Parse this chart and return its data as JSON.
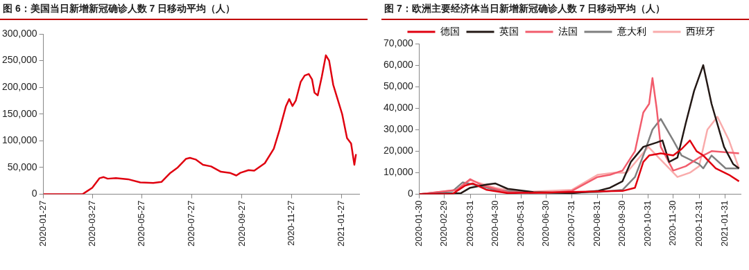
{
  "chart_data": [
    {
      "type": "line",
      "title": "图 6：美国当日新增新冠确诊人数 7 日移动平均（人）",
      "color": "#e0000f",
      "x": [
        "2020-01-27",
        "2020-03-15",
        "2020-03-20",
        "2020-03-27",
        "2020-04-05",
        "2020-04-10",
        "2020-04-15",
        "2020-04-25",
        "2020-05-10",
        "2020-05-25",
        "2020-06-10",
        "2020-06-20",
        "2020-07-01",
        "2020-07-10",
        "2020-07-20",
        "2020-07-25",
        "2020-08-01",
        "2020-08-10",
        "2020-08-20",
        "2020-09-01",
        "2020-09-12",
        "2020-09-20",
        "2020-09-25",
        "2020-10-05",
        "2020-10-12",
        "2020-10-25",
        "2020-11-05",
        "2020-11-12",
        "2020-11-20",
        "2020-11-24",
        "2020-11-28",
        "2020-12-02",
        "2020-12-08",
        "2020-12-13",
        "2020-12-18",
        "2020-12-22",
        "2020-12-25",
        "2020-12-29",
        "2021-01-03",
        "2021-01-08",
        "2021-01-12",
        "2021-01-17",
        "2021-01-22",
        "2021-01-28",
        "2021-02-03",
        "2021-02-08",
        "2021-02-12",
        "2021-02-14"
      ],
      "values": [
        0,
        0,
        5000,
        12000,
        30000,
        32000,
        29000,
        30000,
        28000,
        22000,
        21000,
        23000,
        40000,
        50000,
        66000,
        68000,
        65000,
        55000,
        52000,
        42000,
        40000,
        35000,
        40000,
        45000,
        44000,
        58000,
        85000,
        120000,
        165000,
        178000,
        165000,
        175000,
        210000,
        222000,
        225000,
        215000,
        190000,
        185000,
        220000,
        260000,
        250000,
        205000,
        180000,
        150000,
        105000,
        95000,
        55000,
        75000
      ],
      "xlim": [
        "2020-01-27",
        "2021-02-18"
      ],
      "xticks": [
        "2020-01-27",
        "2020-03-27",
        "2020-05-27",
        "2020-07-27",
        "2020-09-27",
        "2020-11-27",
        "2021-01-27"
      ],
      "ylim": [
        0,
        300000
      ],
      "yticks": [
        {
          "value": 0,
          "label": "0"
        },
        {
          "value": 50000,
          "label": "50,000"
        },
        {
          "value": 100000,
          "label": "100,000"
        },
        {
          "value": 150000,
          "label": "150,000"
        },
        {
          "value": 200000,
          "label": "200,000"
        },
        {
          "value": 250000,
          "label": "250,000"
        },
        {
          "value": 300000,
          "label": "300,000"
        }
      ],
      "grid": false,
      "legend": false
    },
    {
      "type": "line",
      "title": "图 7：欧洲主要经济体当日新增新冠确诊人数 7 日移动平均（人）",
      "series": [
        {
          "name": "德国",
          "color": "#e0000f",
          "x": [
            "2020-01-30",
            "2020-03-10",
            "2020-03-25",
            "2020-04-03",
            "2020-04-20",
            "2020-05-15",
            "2020-09-30",
            "2020-10-15",
            "2020-10-25",
            "2020-11-01",
            "2020-11-15",
            "2020-11-30",
            "2020-12-10",
            "2020-12-20",
            "2020-12-28",
            "2021-01-05",
            "2021-01-20",
            "2021-02-05",
            "2021-02-17"
          ],
          "values": [
            0,
            200,
            4000,
            5000,
            2000,
            500,
            1500,
            3000,
            15000,
            18000,
            19000,
            18000,
            21000,
            25000,
            20000,
            18000,
            12000,
            9000,
            6000
          ]
        },
        {
          "name": "英国",
          "color": "#231815",
          "x": [
            "2020-01-30",
            "2020-03-20",
            "2020-03-31",
            "2020-04-20",
            "2020-04-30",
            "2020-05-15",
            "2020-06-15",
            "2020-07-31",
            "2020-08-31",
            "2020-09-15",
            "2020-09-30",
            "2020-10-10",
            "2020-10-25",
            "2020-11-10",
            "2020-11-17",
            "2020-11-25",
            "2020-12-05",
            "2020-12-15",
            "2020-12-25",
            "2021-01-05",
            "2021-01-15",
            "2021-01-30",
            "2021-02-10",
            "2021-02-17"
          ],
          "values": [
            0,
            500,
            3000,
            4500,
            5000,
            2500,
            1000,
            500,
            1500,
            3000,
            6000,
            15000,
            22000,
            24000,
            25000,
            15000,
            17000,
            33000,
            48000,
            60000,
            42000,
            22000,
            14000,
            12000
          ]
        },
        {
          "name": "法国",
          "color": "#f25c6c",
          "x": [
            "2020-01-30",
            "2020-03-15",
            "2020-03-31",
            "2020-04-15",
            "2020-05-15",
            "2020-06-30",
            "2020-07-31",
            "2020-08-31",
            "2020-09-15",
            "2020-09-30",
            "2020-10-15",
            "2020-10-25",
            "2020-11-01",
            "2020-11-05",
            "2020-11-10",
            "2020-11-15",
            "2020-11-30",
            "2020-12-15",
            "2020-12-31",
            "2021-01-15",
            "2021-02-17"
          ],
          "values": [
            0,
            2000,
            7000,
            4000,
            1000,
            500,
            1500,
            8000,
            9000,
            11000,
            20000,
            38000,
            42000,
            54000,
            40000,
            22000,
            11000,
            13000,
            17000,
            20000,
            19000
          ]
        },
        {
          "name": "意大利",
          "color": "#7f7f7f",
          "x": [
            "2020-01-30",
            "2020-03-10",
            "2020-03-22",
            "2020-04-10",
            "2020-04-30",
            "2020-06-15",
            "2020-08-31",
            "2020-09-30",
            "2020-10-15",
            "2020-10-25",
            "2020-11-05",
            "2020-11-15",
            "2020-11-30",
            "2020-12-10",
            "2020-12-31",
            "2021-01-05",
            "2021-01-15",
            "2021-02-01",
            "2021-02-17"
          ],
          "values": [
            0,
            1500,
            5500,
            4000,
            2000,
            300,
            1000,
            2000,
            8000,
            18000,
            30000,
            35000,
            25000,
            18000,
            14000,
            12000,
            18000,
            12000,
            12000
          ]
        },
        {
          "name": "西班牙",
          "color": "#f9abab",
          "x": [
            "2020-01-30",
            "2020-03-15",
            "2020-03-31",
            "2020-04-30",
            "2020-05-31",
            "2020-07-31",
            "2020-08-31",
            "2020-09-20",
            "2020-10-05",
            "2020-10-31",
            "2020-11-10",
            "2020-11-25",
            "2020-12-05",
            "2020-12-20",
            "2020-12-31",
            "2021-01-10",
            "2021-01-22",
            "2021-02-05",
            "2021-02-17"
          ],
          "values": [
            0,
            2000,
            6500,
            3000,
            1000,
            2000,
            9000,
            10000,
            10000,
            22000,
            18000,
            12000,
            8000,
            10000,
            13000,
            30000,
            36000,
            25000,
            12000
          ]
        }
      ],
      "xlim": [
        "2020-01-30",
        "2021-02-19"
      ],
      "xticks": [
        "2020-01-30",
        "2020-02-29",
        "2020-03-31",
        "2020-04-30",
        "2020-05-31",
        "2020-06-30",
        "2020-07-31",
        "2020-08-31",
        "2020-09-30",
        "2020-10-31",
        "2020-11-30",
        "2020-12-31",
        "2021-01-31"
      ],
      "ylim": [
        0,
        70000
      ],
      "yticks": [
        {
          "value": 0,
          "label": "0"
        },
        {
          "value": 10000,
          "label": "10,000"
        },
        {
          "value": 20000,
          "label": "20,000"
        },
        {
          "value": 30000,
          "label": "30,000"
        },
        {
          "value": 40000,
          "label": "40,000"
        },
        {
          "value": 50000,
          "label": "50,000"
        },
        {
          "value": 60000,
          "label": "60,000"
        },
        {
          "value": 70000,
          "label": "70,000"
        }
      ],
      "grid": false,
      "legend": "top"
    }
  ]
}
